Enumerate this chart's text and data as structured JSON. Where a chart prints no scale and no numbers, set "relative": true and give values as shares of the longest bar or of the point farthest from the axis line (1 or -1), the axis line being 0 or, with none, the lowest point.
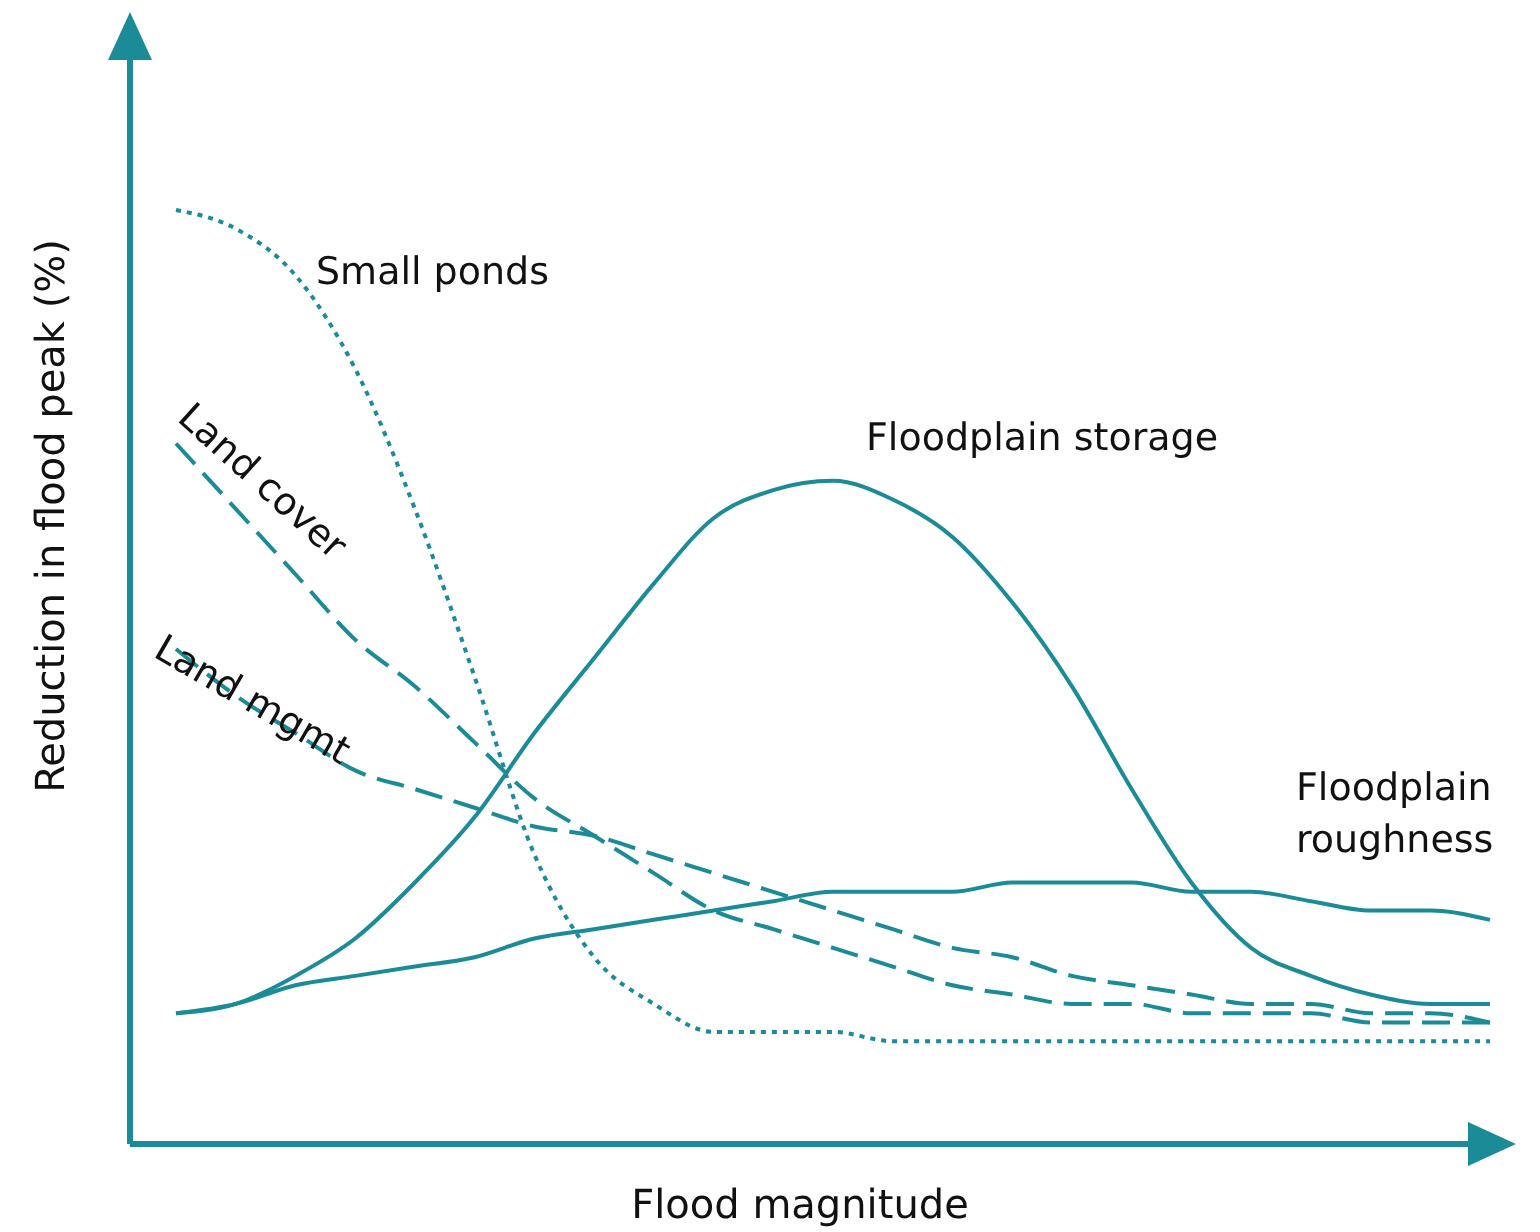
{
  "chart_data": {
    "type": "line",
    "relative": true,
    "xlabel": "Flood magnitude",
    "ylabel": "Reduction in flood peak (%)",
    "legend": false,
    "grid": false,
    "categories": [
      null,
      null,
      null,
      null,
      null,
      null,
      null,
      null,
      null,
      null,
      null,
      null,
      null,
      null,
      null,
      null,
      null,
      null,
      null,
      null,
      null,
      null,
      null
    ],
    "series": [
      {
        "name": "Small ponds",
        "color": "#1b8b98",
        "line_style": "dotted",
        "values": [
          1.0,
          0.98,
          0.93,
          0.83,
          0.68,
          0.5,
          0.31,
          0.2,
          0.15,
          0.12,
          0.12,
          0.12,
          0.11,
          0.11,
          0.11,
          0.11,
          0.11,
          0.11,
          0.11,
          0.11,
          0.11,
          0.11,
          0.11
        ]
      },
      {
        "name": "Land cover",
        "color": "#1b8b98",
        "line_style": "dashed",
        "values": [
          0.75,
          0.68,
          0.61,
          0.54,
          0.49,
          0.43,
          0.37,
          0.33,
          0.29,
          0.25,
          0.23,
          0.21,
          0.19,
          0.17,
          0.16,
          0.15,
          0.15,
          0.14,
          0.14,
          0.14,
          0.13,
          0.13,
          0.13
        ]
      },
      {
        "name": "Land mgmt",
        "color": "#1b8b98",
        "line_style": "dashed",
        "values": [
          0.53,
          0.48,
          0.44,
          0.4,
          0.38,
          0.36,
          0.34,
          0.33,
          0.31,
          0.29,
          0.27,
          0.25,
          0.23,
          0.21,
          0.2,
          0.18,
          0.17,
          0.16,
          0.15,
          0.15,
          0.14,
          0.14,
          0.13
        ]
      },
      {
        "name": "Floodplain storage",
        "color": "#1b8b98",
        "line_style": "solid",
        "values": [
          0.14,
          0.15,
          0.18,
          0.22,
          0.28,
          0.35,
          0.44,
          0.52,
          0.6,
          0.67,
          0.7,
          0.71,
          0.69,
          0.65,
          0.58,
          0.49,
          0.38,
          0.28,
          0.21,
          0.18,
          0.16,
          0.15,
          0.15
        ]
      },
      {
        "name": "Floodplain roughness",
        "color": "#1b8b98",
        "line_style": "solid",
        "values": [
          0.14,
          0.15,
          0.17,
          0.18,
          0.19,
          0.2,
          0.22,
          0.23,
          0.24,
          0.25,
          0.26,
          0.27,
          0.27,
          0.27,
          0.28,
          0.28,
          0.28,
          0.27,
          0.27,
          0.26,
          0.25,
          0.25,
          0.24
        ]
      }
    ]
  }
}
